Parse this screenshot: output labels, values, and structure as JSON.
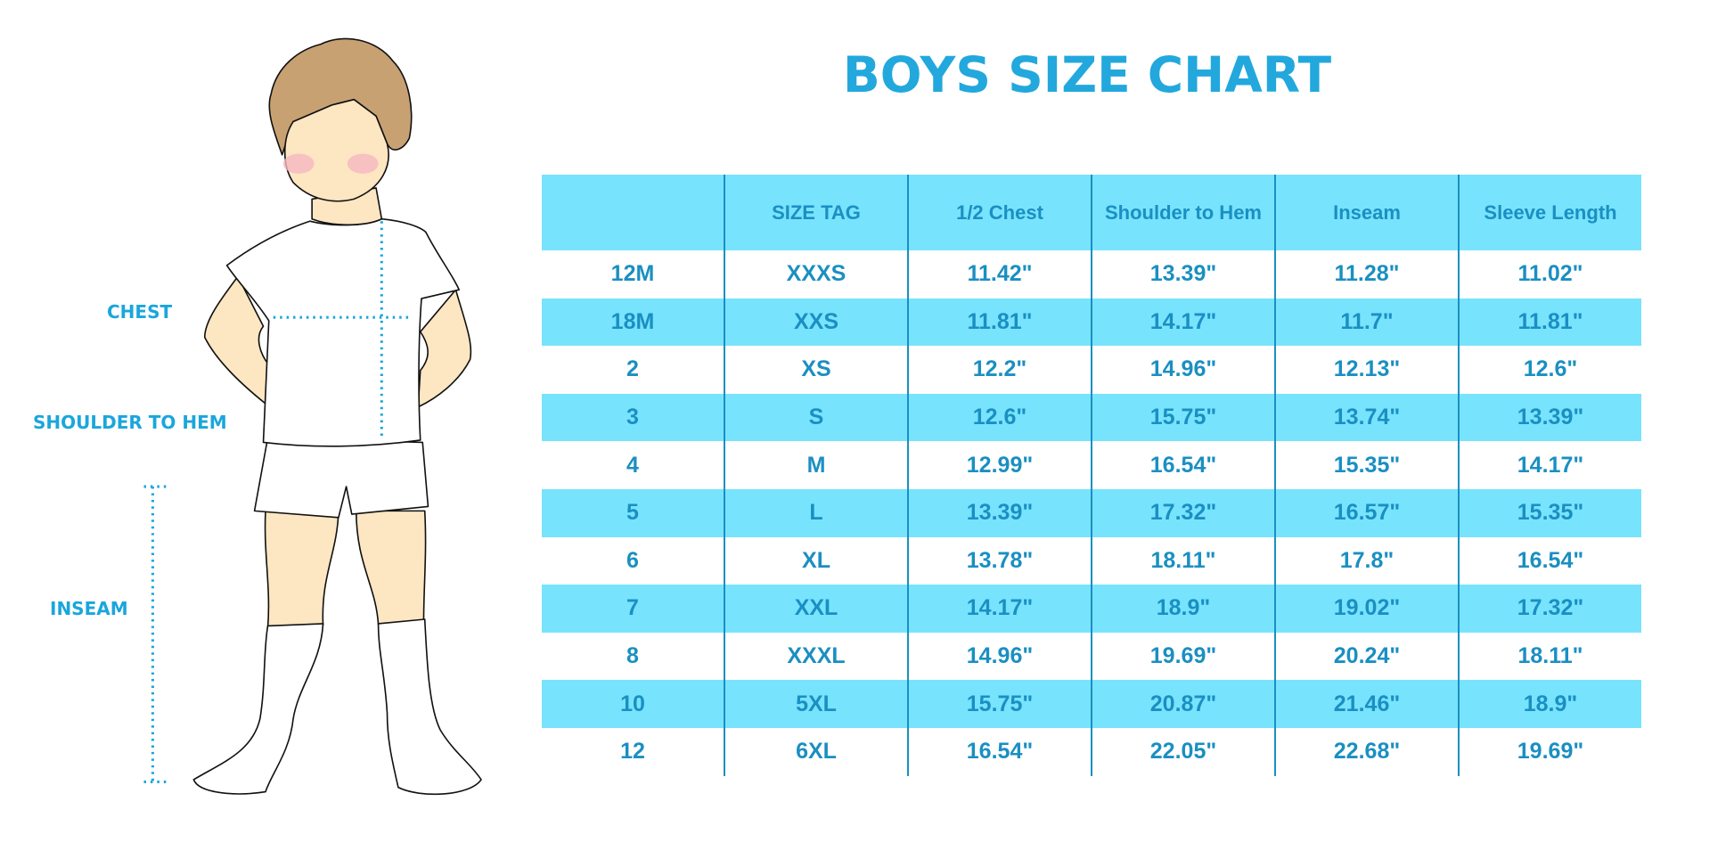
{
  "title": "BOYS SIZE CHART",
  "figure": {
    "labels": {
      "chest": "CHEST",
      "shoulder_to_hem": "SHOULDER TO HEM",
      "inseam": "INSEAM"
    },
    "colors": {
      "hair": "#c8a173",
      "skin": "#fde6c2",
      "cheek": "#f6b8c0",
      "measure_line": "#1aa6dc"
    }
  },
  "table": {
    "headers": [
      "",
      "SIZE TAG",
      "1/2 Chest",
      "Shoulder to Hem",
      "Inseam",
      "Sleeve Length"
    ],
    "rows": [
      [
        "12M",
        "XXXS",
        "11.42\"",
        "13.39\"",
        "11.28\"",
        "11.02\""
      ],
      [
        "18M",
        "XXS",
        "11.81\"",
        "14.17\"",
        "11.7\"",
        "11.81\""
      ],
      [
        "2",
        "XS",
        "12.2\"",
        "14.96\"",
        "12.13\"",
        "12.6\""
      ],
      [
        "3",
        "S",
        "12.6\"",
        "15.75\"",
        "13.74\"",
        "13.39\""
      ],
      [
        "4",
        "M",
        "12.99\"",
        "16.54\"",
        "15.35\"",
        "14.17\""
      ],
      [
        "5",
        "L",
        "13.39\"",
        "17.32\"",
        "16.57\"",
        "15.35\""
      ],
      [
        "6",
        "XL",
        "13.78\"",
        "18.11\"",
        "17.8\"",
        "16.54\""
      ],
      [
        "7",
        "XXL",
        "14.17\"",
        "18.9\"",
        "19.02\"",
        "17.32\""
      ],
      [
        "8",
        "XXXL",
        "14.96\"",
        "19.69\"",
        "20.24\"",
        "18.11\""
      ],
      [
        "10",
        "5XL",
        "15.75\"",
        "20.87\"",
        "21.46\"",
        "18.9\""
      ],
      [
        "12",
        "6XL",
        "16.54\"",
        "22.05\"",
        "22.68\"",
        "19.69\""
      ]
    ],
    "colors": {
      "header_bg": "#78e3fd",
      "stripe_bg": "#78e3fd",
      "text": "#1a8fc2"
    }
  }
}
